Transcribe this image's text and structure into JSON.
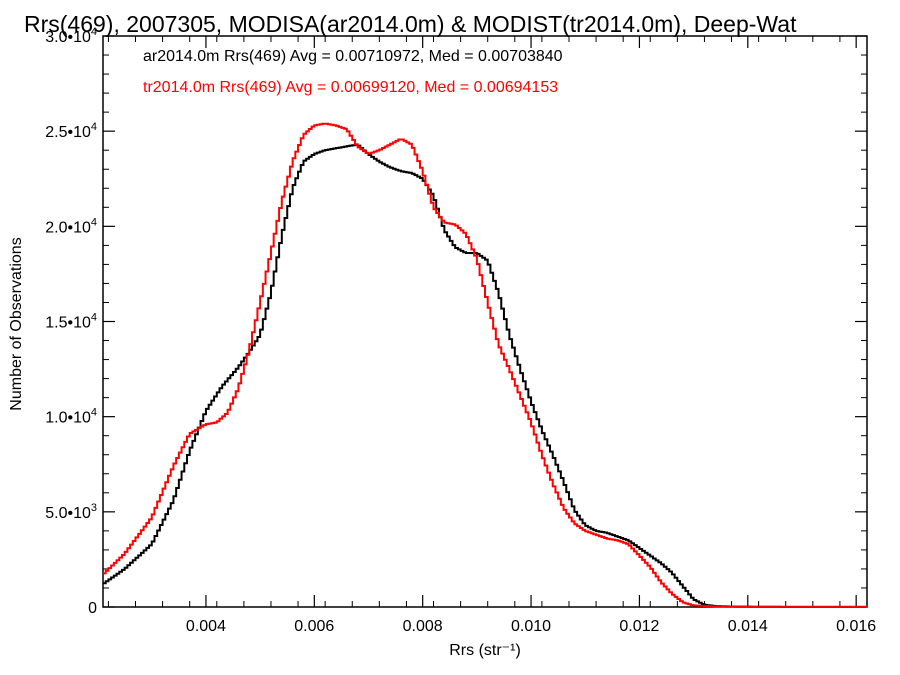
{
  "chart_data": {
    "type": "line",
    "title": "Rrs(469), 2007305, MODISA(ar2014.0m) & MODIST(tr2014.0m), Deep-Wat",
    "xlabel": "Rrs (str⁻¹)",
    "ylabel": "Number of Observations",
    "xlim": [
      0.0021,
      0.0162
    ],
    "ylim": [
      0,
      30000
    ],
    "grid": false,
    "x_ticks": [
      {
        "value": 0.004,
        "label": "0.004"
      },
      {
        "value": 0.006,
        "label": "0.006"
      },
      {
        "value": 0.008,
        "label": "0.008"
      },
      {
        "value": 0.01,
        "label": "0.010"
      },
      {
        "value": 0.012,
        "label": "0.012"
      },
      {
        "value": 0.014,
        "label": "0.014"
      },
      {
        "value": 0.016,
        "label": "0.016"
      }
    ],
    "y_ticks": [
      {
        "value": 0,
        "mant": "0",
        "exp": ""
      },
      {
        "value": 5000,
        "mant": "5.0•10",
        "exp": "3"
      },
      {
        "value": 10000,
        "mant": "1.0•10",
        "exp": "4"
      },
      {
        "value": 15000,
        "mant": "1.5•10",
        "exp": "4"
      },
      {
        "value": 20000,
        "mant": "2.0•10",
        "exp": "4"
      },
      {
        "value": 25000,
        "mant": "2.5•10",
        "exp": "4"
      },
      {
        "value": 30000,
        "mant": "3.0•10",
        "exp": "4"
      }
    ],
    "series": [
      {
        "name": "ar2014.0m Rrs(469) Avg = 0.00710972, Med = 0.00703840",
        "color": "#000000",
        "points": [
          [
            0.0021,
            1200
          ],
          [
            0.0025,
            2000
          ],
          [
            0.003,
            3300
          ],
          [
            0.0034,
            5600
          ],
          [
            0.0037,
            8200
          ],
          [
            0.004,
            10300
          ],
          [
            0.0043,
            11600
          ],
          [
            0.0046,
            12600
          ],
          [
            0.0048,
            13400
          ],
          [
            0.005,
            14300
          ],
          [
            0.0052,
            16500
          ],
          [
            0.0054,
            19500
          ],
          [
            0.0056,
            22000
          ],
          [
            0.0058,
            23400
          ],
          [
            0.006,
            23800
          ],
          [
            0.0062,
            24000
          ],
          [
            0.0064,
            24100
          ],
          [
            0.0066,
            24200
          ],
          [
            0.0068,
            24300
          ],
          [
            0.007,
            23800
          ],
          [
            0.0072,
            23400
          ],
          [
            0.0074,
            23100
          ],
          [
            0.0076,
            22900
          ],
          [
            0.0078,
            22800
          ],
          [
            0.008,
            22500
          ],
          [
            0.0082,
            21600
          ],
          [
            0.0084,
            19800
          ],
          [
            0.0086,
            18900
          ],
          [
            0.0088,
            18600
          ],
          [
            0.009,
            18600
          ],
          [
            0.0092,
            18200
          ],
          [
            0.0094,
            16500
          ],
          [
            0.0096,
            14300
          ],
          [
            0.0098,
            12500
          ],
          [
            0.01,
            10800
          ],
          [
            0.0102,
            9300
          ],
          [
            0.0104,
            8000
          ],
          [
            0.0106,
            6600
          ],
          [
            0.0108,
            5100
          ],
          [
            0.011,
            4300
          ],
          [
            0.0112,
            4000
          ],
          [
            0.0114,
            3900
          ],
          [
            0.0116,
            3700
          ],
          [
            0.0118,
            3500
          ],
          [
            0.012,
            3100
          ],
          [
            0.0122,
            2700
          ],
          [
            0.0124,
            2300
          ],
          [
            0.0126,
            1800
          ],
          [
            0.0128,
            1100
          ],
          [
            0.013,
            400
          ],
          [
            0.0132,
            120
          ],
          [
            0.0134,
            50
          ],
          [
            0.0138,
            20
          ],
          [
            0.0145,
            10
          ],
          [
            0.0162,
            5
          ]
        ]
      },
      {
        "name": "tr2014.0m Rrs(469) Avg = 0.00699120, Med = 0.00694153",
        "color": "#ff0000",
        "points": [
          [
            0.0021,
            1700
          ],
          [
            0.0025,
            2800
          ],
          [
            0.003,
            4700
          ],
          [
            0.0034,
            7400
          ],
          [
            0.0037,
            9100
          ],
          [
            0.004,
            9600
          ],
          [
            0.0042,
            9700
          ],
          [
            0.0044,
            10200
          ],
          [
            0.0046,
            11500
          ],
          [
            0.0048,
            13500
          ],
          [
            0.005,
            16000
          ],
          [
            0.0052,
            18600
          ],
          [
            0.0054,
            21300
          ],
          [
            0.0056,
            23400
          ],
          [
            0.0058,
            24800
          ],
          [
            0.006,
            25300
          ],
          [
            0.0062,
            25400
          ],
          [
            0.0064,
            25300
          ],
          [
            0.0066,
            25100
          ],
          [
            0.0068,
            24200
          ],
          [
            0.007,
            23800
          ],
          [
            0.0072,
            24000
          ],
          [
            0.0074,
            24300
          ],
          [
            0.0076,
            24600
          ],
          [
            0.0078,
            24300
          ],
          [
            0.008,
            22900
          ],
          [
            0.0082,
            21000
          ],
          [
            0.0084,
            20200
          ],
          [
            0.0086,
            20100
          ],
          [
            0.0088,
            19600
          ],
          [
            0.009,
            18300
          ],
          [
            0.0092,
            16000
          ],
          [
            0.0094,
            13800
          ],
          [
            0.0096,
            12500
          ],
          [
            0.0098,
            11100
          ],
          [
            0.01,
            9700
          ],
          [
            0.0102,
            8000
          ],
          [
            0.0104,
            6500
          ],
          [
            0.0106,
            5200
          ],
          [
            0.0108,
            4400
          ],
          [
            0.011,
            4000
          ],
          [
            0.0112,
            3800
          ],
          [
            0.0114,
            3600
          ],
          [
            0.0116,
            3500
          ],
          [
            0.0118,
            3300
          ],
          [
            0.012,
            2700
          ],
          [
            0.0122,
            2100
          ],
          [
            0.0124,
            1300
          ],
          [
            0.0126,
            700
          ],
          [
            0.0128,
            250
          ],
          [
            0.013,
            80
          ],
          [
            0.0134,
            30
          ],
          [
            0.014,
            10
          ],
          [
            0.0162,
            5
          ]
        ]
      }
    ]
  }
}
